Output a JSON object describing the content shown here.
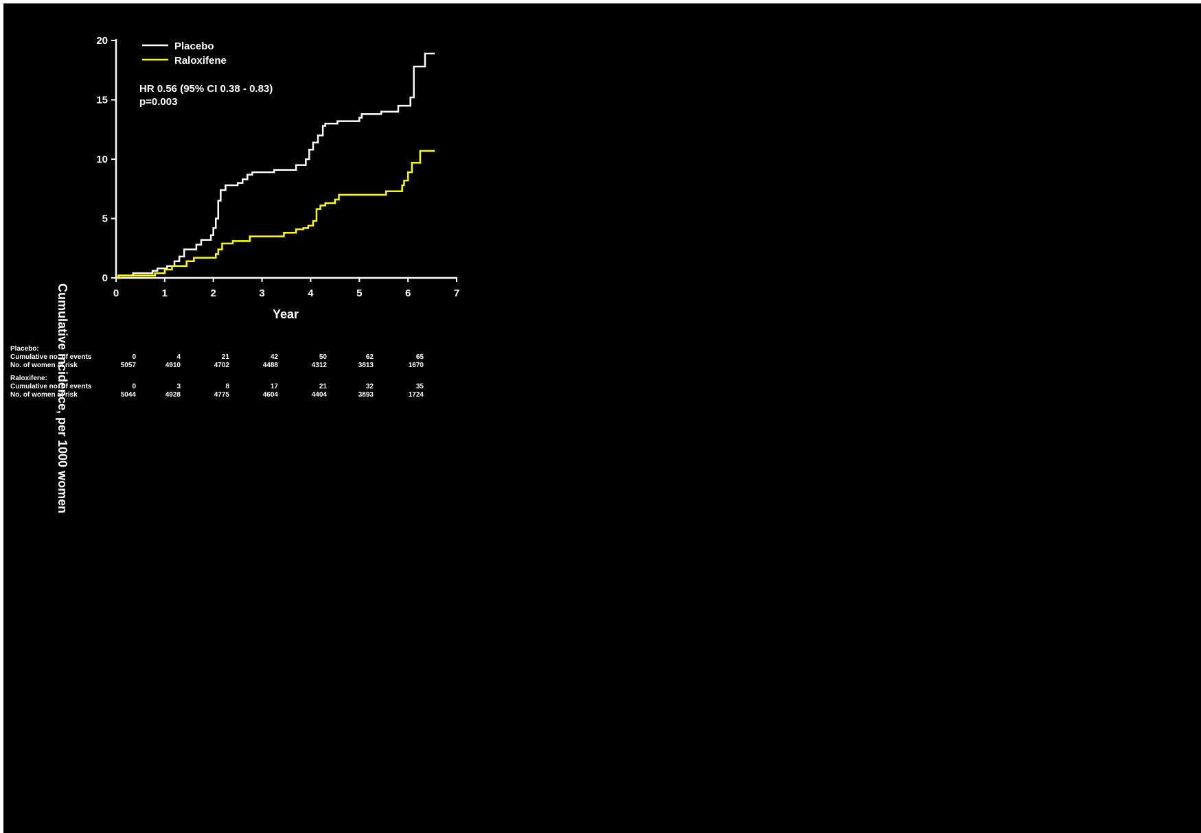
{
  "colors": {
    "background": "#000000",
    "axis": "#ffffff",
    "placebo": "#ffffff",
    "raloxifene": "#ffff00"
  },
  "annotation": {
    "line1": "HR 0.56 (95% CI 0.38 - 0.83)",
    "line2": "p=0.003"
  },
  "chart_data": {
    "type": "line",
    "step": true,
    "xlabel": "Year",
    "ylabel": "Cumulative incidence, per 1000 women",
    "xlim": [
      0,
      7
    ],
    "ylim": [
      0,
      20
    ],
    "xticks": [
      "0",
      "1",
      "2",
      "3",
      "4",
      "5",
      "6",
      "7"
    ],
    "yticks": [
      "0",
      "5",
      "10",
      "15",
      "20"
    ],
    "grid": false,
    "legend_position": "top-left",
    "series": [
      {
        "name": "Placebo",
        "color": "#ffffff",
        "points": [
          [
            0,
            0
          ],
          [
            0.05,
            0.2
          ],
          [
            0.35,
            0.4
          ],
          [
            0.75,
            0.6
          ],
          [
            0.85,
            0.8
          ],
          [
            1.05,
            1.0
          ],
          [
            1.2,
            1.4
          ],
          [
            1.3,
            1.8
          ],
          [
            1.4,
            2.4
          ],
          [
            1.65,
            2.8
          ],
          [
            1.75,
            3.2
          ],
          [
            1.95,
            3.6
          ],
          [
            2.0,
            4.2
          ],
          [
            2.05,
            5.0
          ],
          [
            2.1,
            6.5
          ],
          [
            2.15,
            7.4
          ],
          [
            2.25,
            7.8
          ],
          [
            2.5,
            8.0
          ],
          [
            2.6,
            8.3
          ],
          [
            2.7,
            8.7
          ],
          [
            2.8,
            8.9
          ],
          [
            3.25,
            9.1
          ],
          [
            3.7,
            9.5
          ],
          [
            3.9,
            10.0
          ],
          [
            3.97,
            10.8
          ],
          [
            4.05,
            11.4
          ],
          [
            4.15,
            12.0
          ],
          [
            4.25,
            12.8
          ],
          [
            4.3,
            13.0
          ],
          [
            4.55,
            13.2
          ],
          [
            5.0,
            13.5
          ],
          [
            5.05,
            13.8
          ],
          [
            5.45,
            14.0
          ],
          [
            5.8,
            14.5
          ],
          [
            6.05,
            15.2
          ],
          [
            6.12,
            17.8
          ],
          [
            6.35,
            18.9
          ],
          [
            6.55,
            18.9
          ]
        ]
      },
      {
        "name": "Raloxifene",
        "color": "#ffff00",
        "points": [
          [
            0,
            0
          ],
          [
            0.05,
            0.2
          ],
          [
            0.8,
            0.4
          ],
          [
            1.0,
            0.7
          ],
          [
            1.15,
            1.0
          ],
          [
            1.45,
            1.4
          ],
          [
            1.6,
            1.7
          ],
          [
            2.05,
            2.0
          ],
          [
            2.1,
            2.4
          ],
          [
            2.18,
            2.9
          ],
          [
            2.4,
            3.1
          ],
          [
            2.75,
            3.5
          ],
          [
            3.45,
            3.8
          ],
          [
            3.7,
            4.1
          ],
          [
            3.85,
            4.2
          ],
          [
            3.95,
            4.4
          ],
          [
            4.05,
            4.8
          ],
          [
            4.12,
            5.8
          ],
          [
            4.2,
            6.1
          ],
          [
            4.3,
            6.3
          ],
          [
            4.5,
            6.6
          ],
          [
            4.58,
            7.0
          ],
          [
            5.55,
            7.3
          ],
          [
            5.88,
            7.8
          ],
          [
            5.92,
            8.2
          ],
          [
            6.0,
            8.9
          ],
          [
            6.08,
            9.7
          ],
          [
            6.25,
            10.7
          ],
          [
            6.55,
            10.7
          ]
        ]
      }
    ]
  },
  "risk_table": {
    "groups": [
      {
        "title": "Placebo:",
        "rows": [
          {
            "label": "Cumulative no. of events",
            "values": [
              "0",
              "4",
              "21",
              "42",
              "50",
              "62",
              "65"
            ]
          },
          {
            "label": "No. of women at risk",
            "values": [
              "5057",
              "4910",
              "4702",
              "4488",
              "4312",
              "3813",
              "1670"
            ]
          }
        ]
      },
      {
        "title": "Raloxifene:",
        "rows": [
          {
            "label": "Cumulative no. of events",
            "values": [
              "0",
              "3",
              "8",
              "17",
              "21",
              "32",
              "35"
            ]
          },
          {
            "label": "No. of women at risk",
            "values": [
              "5044",
              "4928",
              "4775",
              "4604",
              "4404",
              "3893",
              "1724"
            ]
          }
        ]
      }
    ]
  }
}
